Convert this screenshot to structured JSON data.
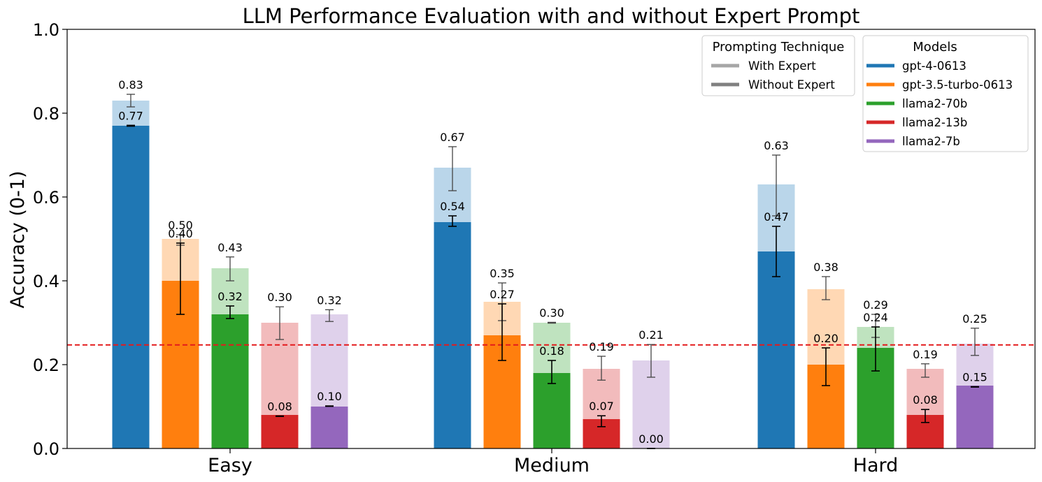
{
  "chart_data": {
    "type": "bar",
    "title": "LLM Performance Evaluation with and without Expert Prompt",
    "xlabel": "",
    "ylabel": "Accuracy (0-1)",
    "ylim": [
      0,
      1.0
    ],
    "yticks": [
      "0.0",
      "0.2",
      "0.4",
      "0.6",
      "0.8",
      "1.0"
    ],
    "categories": [
      "Easy",
      "Medium",
      "Hard"
    ],
    "baseline": {
      "value": 0.247,
      "color": "#e41a1c",
      "style": "dashed"
    },
    "legend_models": {
      "title": "Models",
      "placement": "top-right"
    },
    "legend_technique": {
      "title": "Prompting Technique",
      "entries": [
        {
          "label": "With Expert",
          "color": "#a6a6a6"
        },
        {
          "label": "Without Expert",
          "color": "#808080"
        }
      ]
    },
    "series": [
      {
        "name": "gpt-4-0613",
        "color": "#1f77b4",
        "light": "#bad6ea",
        "with_expert": [
          0.83,
          0.67,
          0.63
        ],
        "with_expert_labels": [
          "0.83",
          "0.67",
          "0.63"
        ],
        "with_expert_err": [
          [
            0.815,
            0.845
          ],
          [
            0.615,
            0.72
          ],
          [
            0.555,
            0.7
          ]
        ],
        "without_expert": [
          0.77,
          0.54,
          0.47
        ],
        "without_expert_labels": [
          "0.77",
          "0.54",
          "0.47"
        ],
        "without_expert_err": [
          [
            0.769,
            0.771
          ],
          [
            0.53,
            0.555
          ],
          [
            0.41,
            0.53
          ]
        ]
      },
      {
        "name": "gpt-3.5-turbo-0613",
        "color": "#ff7f0e",
        "light": "#ffd8b4",
        "with_expert": [
          0.5,
          0.35,
          0.38
        ],
        "with_expert_labels": [
          "0.50",
          "0.35",
          "0.38"
        ],
        "with_expert_err": [
          [
            0.485,
            0.51
          ],
          [
            0.305,
            0.395
          ],
          [
            0.355,
            0.41
          ]
        ],
        "without_expert": [
          0.4,
          0.27,
          0.2
        ],
        "without_expert_labels": [
          "0.40",
          "0.27",
          "0.20"
        ],
        "without_expert_err": [
          [
            0.32,
            0.49
          ],
          [
            0.21,
            0.345
          ],
          [
            0.15,
            0.24
          ]
        ]
      },
      {
        "name": "llama2-70b",
        "color": "#2ca02c",
        "light": "#bfe3bf",
        "with_expert": [
          0.43,
          0.3,
          0.29
        ],
        "with_expert_labels": [
          "0.43",
          "0.30",
          "0.29"
        ],
        "with_expert_err": [
          [
            0.4,
            0.457
          ],
          [
            0.299,
            0.301
          ],
          [
            0.265,
            0.32
          ]
        ],
        "without_expert": [
          0.32,
          0.18,
          0.24
        ],
        "without_expert_labels": [
          "0.32",
          "0.18",
          "0.24"
        ],
        "without_expert_err": [
          [
            0.31,
            0.34
          ],
          [
            0.155,
            0.21
          ],
          [
            0.185,
            0.29
          ]
        ]
      },
      {
        "name": "llama2-13b",
        "color": "#d62728",
        "light": "#f2bbbc",
        "with_expert": [
          0.3,
          0.19,
          0.19
        ],
        "with_expert_labels": [
          "0.30",
          "0.19",
          "0.19"
        ],
        "with_expert_err": [
          [
            0.26,
            0.338
          ],
          [
            0.163,
            0.22
          ],
          [
            0.17,
            0.202
          ]
        ],
        "without_expert": [
          0.08,
          0.07,
          0.08
        ],
        "without_expert_labels": [
          "0.08",
          "0.07",
          "0.08"
        ],
        "without_expert_err": [
          [
            0.0765,
            0.0775
          ],
          [
            0.052,
            0.078
          ],
          [
            0.062,
            0.093
          ]
        ]
      },
      {
        "name": "llama2-7b",
        "color": "#9467bd",
        "light": "#dfd1eb",
        "with_expert": [
          0.32,
          0.21,
          0.25
        ],
        "with_expert_labels": [
          "0.32",
          "0.21",
          "0.25"
        ],
        "with_expert_err": [
          [
            0.303,
            0.331
          ],
          [
            0.17,
            0.248
          ],
          [
            0.222,
            0.287
          ]
        ],
        "without_expert": [
          0.1,
          0.0,
          0.15
        ],
        "without_expert_labels": [
          "0.10",
          "0.00",
          "0.15"
        ],
        "without_expert_err": [
          [
            0.1005,
            0.1015
          ],
          [
            0.0,
            0.0
          ],
          [
            0.1465,
            0.1475
          ]
        ]
      }
    ]
  }
}
